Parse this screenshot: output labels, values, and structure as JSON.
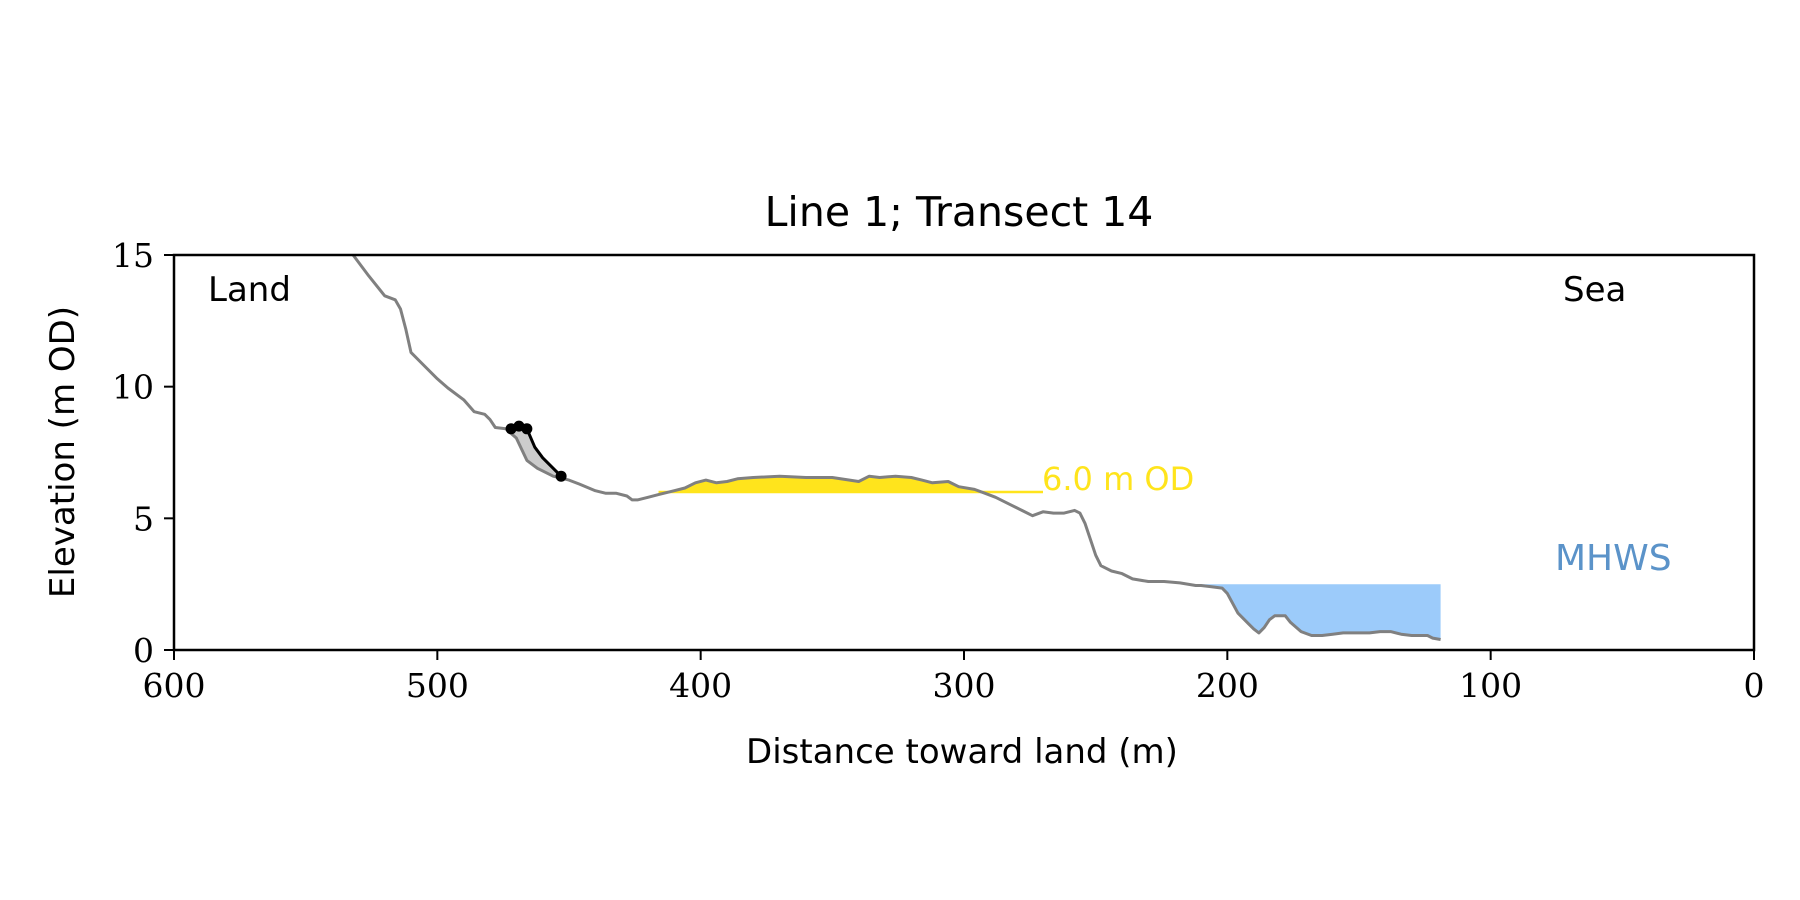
{
  "chart_data": {
    "type": "line",
    "title": "Line 1; Transect 14",
    "xlabel": "Distance toward land (m)",
    "ylabel": "Elevation (m OD)",
    "xlim": [
      600,
      0
    ],
    "ylim": [
      0,
      15
    ],
    "x_ticks": [
      600,
      500,
      400,
      300,
      200,
      100,
      0
    ],
    "y_ticks": [
      0,
      5,
      10,
      15
    ],
    "grid": false,
    "corner_labels": {
      "left": "Land",
      "right": "Sea"
    },
    "annotations": {
      "od_level_label": "6.0 m OD",
      "mhws_label": "MHWS"
    },
    "colors": {
      "profile": "#808080",
      "cliff": "#000000",
      "od_fill": "#ffe41c",
      "od_label": "#ffe41c",
      "mhws_fill": "#9ccbfa",
      "mhws_label": "#5b93c9"
    },
    "od_level": {
      "elevation": 6.0,
      "x_start": 416,
      "x_end": 270
    },
    "mhws": {
      "elevation": 2.5,
      "x_start": 210,
      "x_end": 119
    },
    "profile": {
      "x": [
        532,
        526,
        520,
        516,
        514,
        512,
        510,
        506,
        500,
        496,
        490,
        486,
        482,
        480,
        478,
        474,
        470,
        466,
        462,
        456,
        450,
        446,
        440,
        436,
        432,
        428,
        426,
        424,
        420,
        416,
        410,
        406,
        402,
        398,
        394,
        390,
        386,
        380,
        370,
        360,
        350,
        340,
        336,
        332,
        326,
        320,
        316,
        312,
        306,
        302,
        296,
        292,
        288,
        282,
        278,
        274,
        270,
        266,
        262,
        258,
        256,
        254,
        252,
        250,
        248,
        244,
        240,
        236,
        230,
        224,
        218,
        212,
        210,
        206,
        202,
        200,
        196,
        192,
        190,
        188,
        186,
        184,
        182,
        178,
        176,
        172,
        168,
        164,
        160,
        156,
        150,
        146,
        142,
        138,
        134,
        130,
        126,
        124,
        122,
        119
      ],
      "y": [
        15.0,
        14.2,
        13.45,
        13.3,
        12.95,
        12.2,
        11.3,
        10.9,
        10.3,
        9.95,
        9.5,
        9.05,
        8.95,
        8.75,
        8.45,
        8.4,
        8.05,
        7.2,
        6.9,
        6.6,
        6.45,
        6.3,
        6.05,
        5.95,
        5.95,
        5.85,
        5.7,
        5.7,
        5.8,
        5.9,
        6.05,
        6.15,
        6.35,
        6.45,
        6.35,
        6.4,
        6.5,
        6.55,
        6.6,
        6.55,
        6.55,
        6.4,
        6.6,
        6.55,
        6.6,
        6.55,
        6.45,
        6.35,
        6.4,
        6.2,
        6.1,
        5.95,
        5.8,
        5.5,
        5.3,
        5.1,
        5.25,
        5.2,
        5.2,
        5.3,
        5.2,
        4.8,
        4.2,
        3.6,
        3.2,
        3.0,
        2.9,
        2.7,
        2.6,
        2.6,
        2.55,
        2.45,
        2.45,
        2.4,
        2.35,
        2.15,
        1.4,
        1.0,
        0.8,
        0.65,
        0.85,
        1.15,
        1.3,
        1.3,
        1.05,
        0.7,
        0.55,
        0.55,
        0.6,
        0.65,
        0.65,
        0.65,
        0.7,
        0.7,
        0.6,
        0.55,
        0.55,
        0.55,
        0.45,
        0.4
      ]
    },
    "cliff_top": {
      "x": [
        472,
        469,
        466,
        463,
        460,
        456,
        453
      ],
      "y": [
        8.4,
        8.5,
        8.4,
        7.7,
        7.3,
        6.9,
        6.6
      ]
    },
    "cliff_points": {
      "x": [
        472,
        469,
        466,
        453
      ],
      "y": [
        8.4,
        8.5,
        8.4,
        6.6
      ]
    }
  }
}
